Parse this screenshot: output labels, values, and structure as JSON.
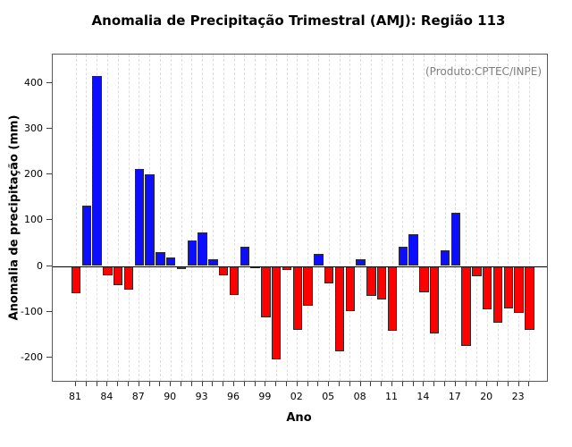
{
  "title": "Anomalia de Precipitação Trimestral (AMJ): Região 113",
  "annotation": "(Produto:CPTEC/INPE)",
  "chart_data": {
    "type": "bar",
    "title": "Anomalia de Precipitação Trimestral (AMJ): Região 113",
    "annotation": "(Produto:CPTEC/INPE)",
    "xlabel": "Ano",
    "ylabel": "Anomalia de precipitação (mm)",
    "years": [
      1981,
      1982,
      1983,
      1984,
      1985,
      1986,
      1987,
      1988,
      1989,
      1990,
      1991,
      1992,
      1993,
      1994,
      1995,
      1996,
      1997,
      1998,
      1999,
      2000,
      2001,
      2002,
      2003,
      2004,
      2005,
      2006,
      2007,
      2008,
      2009,
      2010,
      2011,
      2012,
      2013,
      2014,
      2015,
      2016,
      2017,
      2018,
      2019,
      2020,
      2021,
      2022,
      2023,
      2024
    ],
    "values": [
      -59,
      132,
      415,
      -20,
      -43,
      -52,
      212,
      200,
      30,
      18,
      -7,
      56,
      74,
      15,
      -20,
      -64,
      43,
      -5,
      -112,
      -204,
      -8,
      -140,
      -88,
      27,
      -38,
      -187,
      -99,
      15,
      -65,
      -73,
      -141,
      42,
      69,
      -57,
      -148,
      35,
      117,
      -176,
      -23,
      -95,
      -124,
      -93,
      -103,
      -140
    ],
    "x_tick_labels": [
      "81",
      "84",
      "87",
      "90",
      "93",
      "96",
      "99",
      "02",
      "05",
      "08",
      "11",
      "14",
      "17",
      "20",
      "23"
    ],
    "x_tick_every": 3,
    "y_ticks": [
      400,
      300,
      200,
      100,
      0,
      -100,
      -200
    ],
    "ylim": [
      -250,
      460
    ],
    "grid": "vertical-dashed",
    "legend": "none",
    "positive_color": "#0d0dff",
    "negative_color": "#ff0000",
    "bar_border_color": "#2b2b2b",
    "annotation_color": "#7f7f7f"
  }
}
